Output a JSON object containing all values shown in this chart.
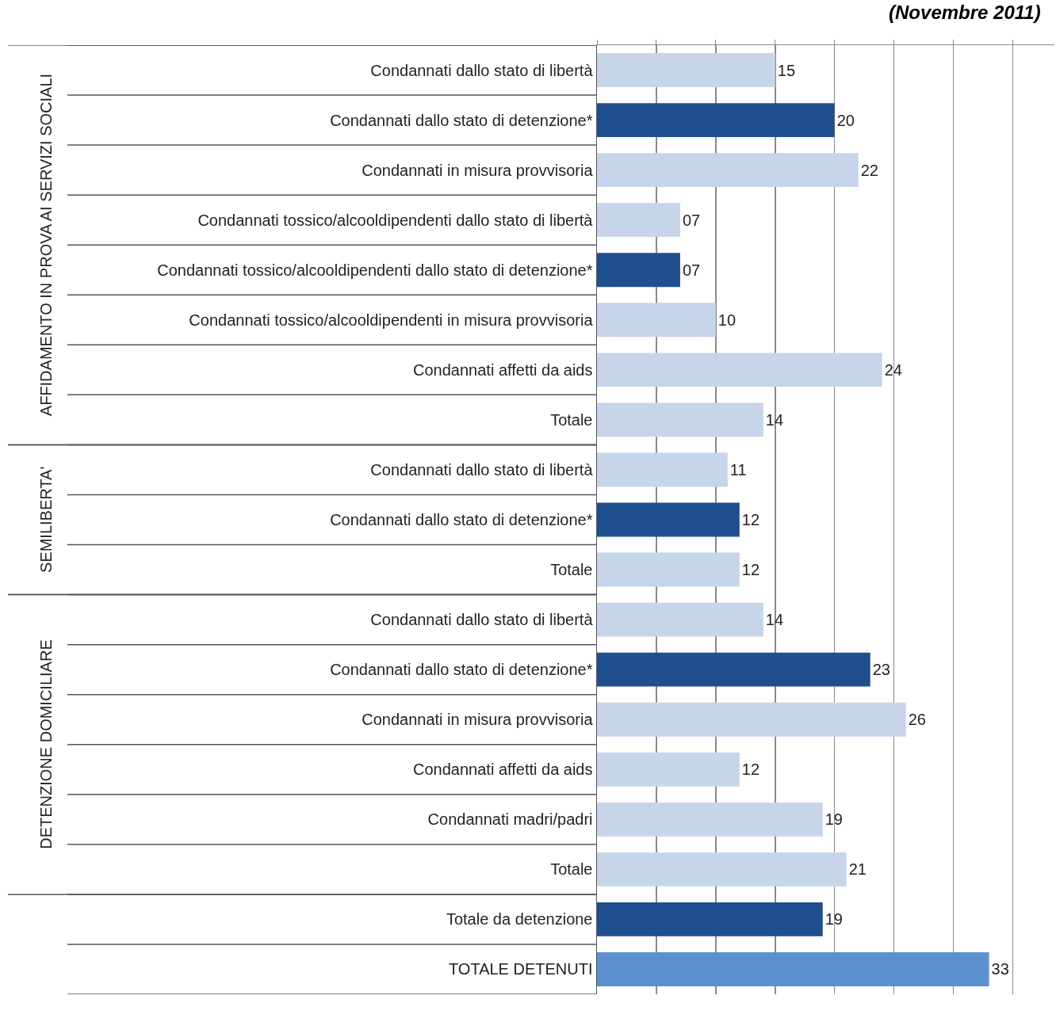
{
  "chart_data": {
    "type": "bar",
    "orientation": "horizontal",
    "title": "(Novembre 2011)",
    "categories": [
      "Condannati dallo stato di libertà",
      "Condannati dallo stato di detenzione*",
      "Condannati in misura provvisoria",
      "Condannati tossico/alcooldipendenti dallo stato di libertà",
      "Condannati tossico/alcooldipendenti dallo stato di detenzione*",
      "Condannati tossico/alcooldipendenti in misura provvisoria",
      "Condannati affetti da aids",
      "Totale",
      "Condannati dallo stato di libertà",
      "Condannati dallo stato di detenzione*",
      "Totale",
      "Condannati dallo stato di libertà",
      "Condannati dallo stato di detenzione*",
      "Condannati in misura provvisoria",
      "Condannati affetti da aids",
      "Condannati madri/padri",
      "Totale",
      "Totale da detenzione",
      "TOTALE DETENUTI"
    ],
    "values": [
      15,
      20,
      22,
      7,
      7,
      10,
      24,
      14,
      11,
      12,
      12,
      14,
      23,
      26,
      12,
      19,
      21,
      19,
      33
    ],
    "value_labels": [
      "15",
      "20",
      "22",
      "07",
      "07",
      "10",
      "24",
      "14",
      "11",
      "12",
      "12",
      "14",
      "23",
      "26",
      "12",
      "19",
      "21",
      "19",
      "33"
    ],
    "colors": [
      "#c6d5ea",
      "#1f4f8f",
      "#c6d5ea",
      "#c6d5ea",
      "#1f4f8f",
      "#c6d5ea",
      "#c6d5ea",
      "#c6d5ea",
      "#c6d5ea",
      "#1f4f8f",
      "#c6d5ea",
      "#c6d5ea",
      "#1f4f8f",
      "#c6d5ea",
      "#c6d5ea",
      "#c6d5ea",
      "#c6d5ea",
      "#1f4f8f",
      "#5b8fcf"
    ],
    "xlim": [
      0,
      38.5
    ],
    "xticks": [
      {
        "value": 0,
        "label": null
      },
      {
        "value": 5,
        "label": null
      },
      {
        "value": 10,
        "label": null
      },
      {
        "value": 15,
        "label": null
      },
      {
        "value": 20,
        "label": null
      },
      {
        "value": 25,
        "label": null
      },
      {
        "value": 30,
        "label": null
      },
      {
        "value": 35,
        "label": null
      }
    ],
    "tick_labels": "y",
    "grid": "x",
    "annotations": [
      "AFFIDAMENTO IN PROVA AI SERVIZI SOCIALI",
      "SEMILIBERTA'",
      "DETENZIONE DOMICILIARE"
    ]
  }
}
